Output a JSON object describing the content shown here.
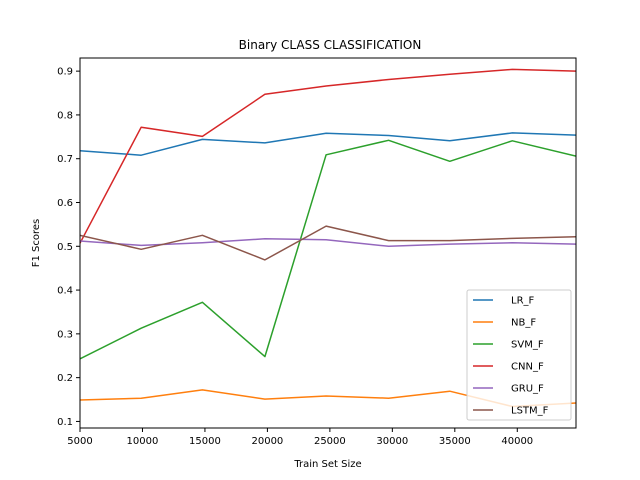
{
  "chart_data": {
    "type": "line",
    "title": "Binary CLASS CLASSIFICATION",
    "xlabel": "Train Set Size",
    "ylabel": "F1 Scores",
    "xlim": [
      5000,
      44700
    ],
    "ylim": [
      0.085,
      0.93
    ],
    "xticks": [
      5000,
      10000,
      15000,
      20000,
      25000,
      30000,
      35000,
      40000
    ],
    "yticks": [
      0.1,
      0.2,
      0.3,
      0.4,
      0.5,
      0.6,
      0.7,
      0.8,
      0.9
    ],
    "grid": false,
    "legend_position": "lower-right",
    "x": [
      5000,
      9900,
      14800,
      19800,
      24700,
      29700,
      34600,
      39600,
      44700
    ],
    "series": [
      {
        "name": "LR_F",
        "color": "#1f77b4",
        "values": [
          0.718,
          0.708,
          0.744,
          0.736,
          0.758,
          0.753,
          0.741,
          0.759,
          0.754
        ]
      },
      {
        "name": "NB_F",
        "color": "#ff7f0e",
        "values": [
          0.149,
          0.153,
          0.172,
          0.151,
          0.158,
          0.153,
          0.169,
          0.134,
          0.142
        ]
      },
      {
        "name": "SVM_F",
        "color": "#2ca02c",
        "values": [
          0.243,
          0.313,
          0.372,
          0.248,
          0.709,
          0.742,
          0.694,
          0.741,
          0.706
        ]
      },
      {
        "name": "CNN_F",
        "color": "#d62728",
        "values": [
          0.507,
          0.772,
          0.751,
          0.847,
          0.866,
          0.881,
          0.893,
          0.904,
          0.9
        ]
      },
      {
        "name": "GRU_F",
        "color": "#9467bd",
        "values": [
          0.512,
          0.502,
          0.508,
          0.517,
          0.515,
          0.5,
          0.505,
          0.508,
          0.505
        ]
      },
      {
        "name": "LSTM_F",
        "color": "#8c564b",
        "values": [
          0.525,
          0.493,
          0.525,
          0.469,
          0.546,
          0.513,
          0.513,
          0.518,
          0.522
        ]
      }
    ]
  }
}
